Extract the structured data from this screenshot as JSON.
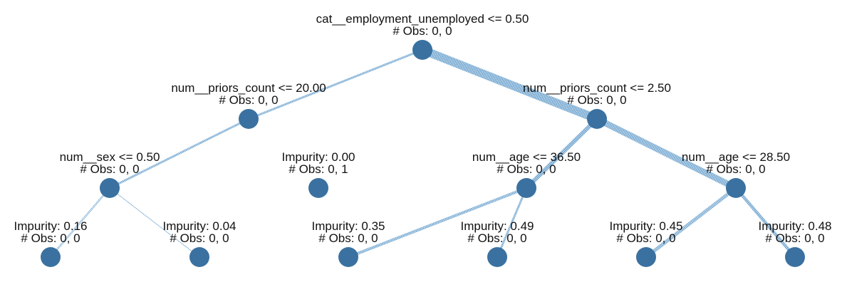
{
  "colors": {
    "node": "#3a71a0",
    "edge": "#4d8fc4",
    "text": "#111111"
  },
  "tree": {
    "nodes": [
      {
        "id": "root",
        "lines": [
          "cat__employment_unemployed <= 0.50",
          "# Obs: 0, 0"
        ]
      },
      {
        "id": "n1",
        "lines": [
          "num__priors_count <= 20.00",
          "# Obs: 0, 0"
        ]
      },
      {
        "id": "n2",
        "lines": [
          "num__priors_count <= 2.50",
          "# Obs: 0, 0"
        ]
      },
      {
        "id": "n3",
        "lines": [
          "num__sex <= 0.50",
          "# Obs: 0, 0"
        ]
      },
      {
        "id": "n4",
        "lines": [
          "Impurity: 0.00",
          "# Obs: 0, 1"
        ]
      },
      {
        "id": "n5",
        "lines": [
          "num__age <= 36.50",
          "# Obs: 0, 0"
        ]
      },
      {
        "id": "n6",
        "lines": [
          "num__age <= 28.50",
          "# Obs: 0, 0"
        ]
      },
      {
        "id": "n7",
        "lines": [
          "Impurity: 0.16",
          "# Obs: 0, 0"
        ]
      },
      {
        "id": "n8",
        "lines": [
          "Impurity: 0.04",
          "# Obs: 0, 0"
        ]
      },
      {
        "id": "n9",
        "lines": [
          "Impurity: 0.35",
          "# Obs: 0, 0"
        ]
      },
      {
        "id": "n10",
        "lines": [
          "Impurity: 0.49",
          "# Obs: 0, 0"
        ]
      },
      {
        "id": "n11",
        "lines": [
          "Impurity: 0.45",
          "# Obs: 0, 0"
        ]
      },
      {
        "id": "n12",
        "lines": [
          "Impurity: 0.48",
          "# Obs: 0, 0"
        ]
      }
    ],
    "edges": [
      {
        "from": "root",
        "to": "n1",
        "weight": 2
      },
      {
        "from": "root",
        "to": "n2",
        "weight": 11
      },
      {
        "from": "n1",
        "to": "n3",
        "weight": 2
      },
      {
        "from": "n1",
        "to": "n4",
        "weight": 0
      },
      {
        "from": "n2",
        "to": "n5",
        "weight": 5
      },
      {
        "from": "n2",
        "to": "n6",
        "weight": 8
      },
      {
        "from": "n3",
        "to": "n7",
        "weight": 1.5
      },
      {
        "from": "n3",
        "to": "n8",
        "weight": 1
      },
      {
        "from": "n5",
        "to": "n9",
        "weight": 3
      },
      {
        "from": "n5",
        "to": "n10",
        "weight": 2
      },
      {
        "from": "n6",
        "to": "n11",
        "weight": 4
      },
      {
        "from": "n6",
        "to": "n12",
        "weight": 3.5
      }
    ]
  }
}
